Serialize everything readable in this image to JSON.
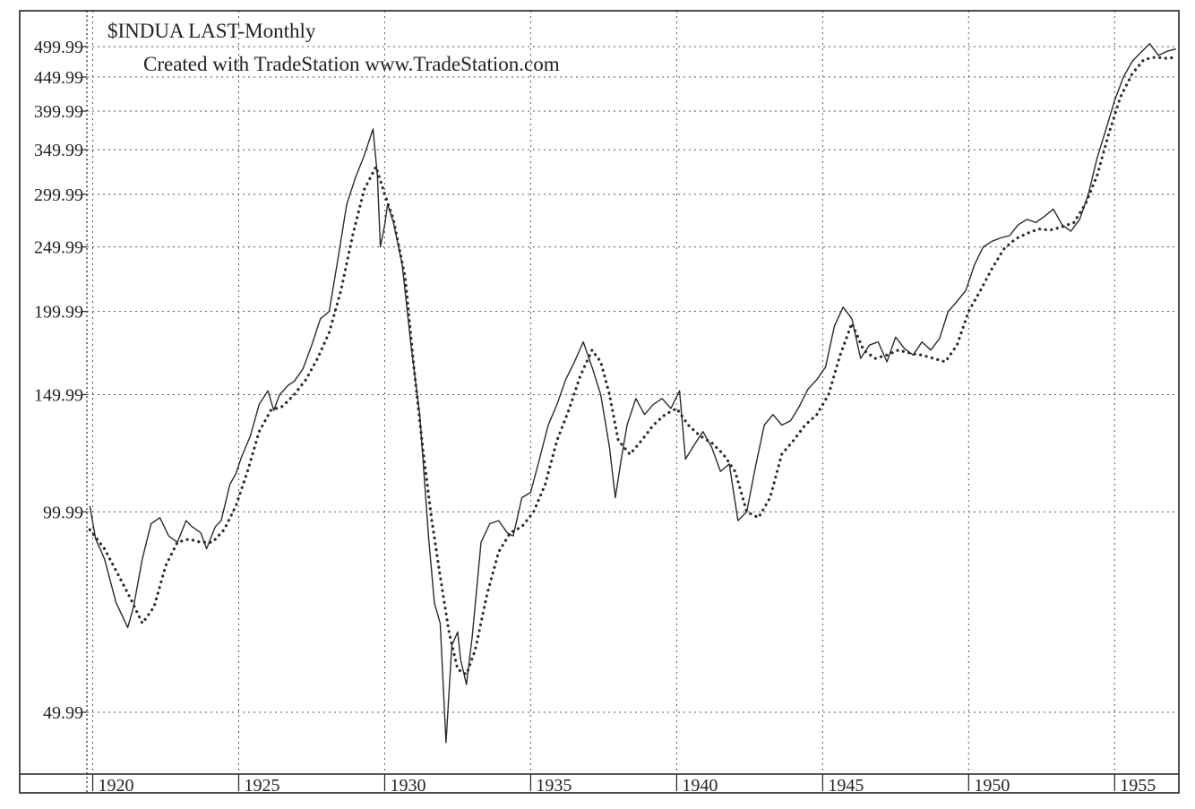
{
  "chart_data": {
    "type": "line",
    "title": "$INDUA LAST-Monthly",
    "subtitle": "Created with TradeStation www.TradeStation.com",
    "xlabel": "",
    "ylabel": "",
    "y_scale": "log",
    "x_range": [
      1919.8,
      1957.2
    ],
    "y_range": [
      40,
      520
    ],
    "grid": true,
    "colors": {
      "price": "#2b2b2b",
      "moving_average": "#2b2b2b",
      "grid": "#555555",
      "frame": "#222222"
    },
    "y_ticks": [
      {
        "value": 49.99,
        "label": "49.99"
      },
      {
        "value": 99.99,
        "label": "99.99"
      },
      {
        "value": 149.99,
        "label": "149.99"
      },
      {
        "value": 199.99,
        "label": "199.99"
      },
      {
        "value": 249.99,
        "label": "249.99"
      },
      {
        "value": 299.99,
        "label": "299.99"
      },
      {
        "value": 349.99,
        "label": "349.99"
      },
      {
        "value": 399.99,
        "label": "399.99"
      },
      {
        "value": 449.99,
        "label": "449.99"
      },
      {
        "value": 499.99,
        "label": "499.99"
      }
    ],
    "x_ticks": [
      {
        "value": 1920,
        "label": "1920"
      },
      {
        "value": 1925,
        "label": "1925"
      },
      {
        "value": 1930,
        "label": "1930"
      },
      {
        "value": 1935,
        "label": "1935"
      },
      {
        "value": 1940,
        "label": "1940"
      },
      {
        "value": 1945,
        "label": "1945"
      },
      {
        "value": 1950,
        "label": "1950"
      },
      {
        "value": 1955,
        "label": "1955"
      }
    ],
    "series": [
      {
        "style": "solid",
        "x": [
          1919.9,
          1920.1,
          1920.4,
          1920.8,
          1921.0,
          1921.2,
          1921.4,
          1921.7,
          1922.0,
          1922.3,
          1922.6,
          1922.9,
          1923.2,
          1923.4,
          1923.7,
          1923.9,
          1924.2,
          1924.4,
          1924.7,
          1924.9,
          1925.1,
          1925.4,
          1925.7,
          1926.0,
          1926.2,
          1926.4,
          1926.7,
          1926.9,
          1927.2,
          1927.5,
          1927.8,
          1928.1,
          1928.4,
          1928.7,
          1929.0,
          1929.3,
          1929.6,
          1929.75,
          1929.85,
          1930.0,
          1930.1,
          1930.3,
          1930.6,
          1930.9,
          1931.2,
          1931.5,
          1931.7,
          1931.9,
          1932.1,
          1932.3,
          1932.5,
          1932.6,
          1932.8,
          1933.0,
          1933.3,
          1933.6,
          1933.9,
          1934.2,
          1934.4,
          1934.7,
          1935.0,
          1935.3,
          1935.6,
          1935.9,
          1936.2,
          1936.5,
          1936.8,
          1937.1,
          1937.4,
          1937.7,
          1937.9,
          1938.1,
          1938.3,
          1938.6,
          1938.9,
          1939.2,
          1939.5,
          1939.8,
          1940.1,
          1940.3,
          1940.6,
          1940.9,
          1941.2,
          1941.5,
          1941.8,
          1942.1,
          1942.4,
          1942.7,
          1943.0,
          1943.3,
          1943.6,
          1943.9,
          1944.2,
          1944.5,
          1944.8,
          1945.1,
          1945.4,
          1945.7,
          1946.0,
          1946.3,
          1946.6,
          1946.9,
          1947.2,
          1947.5,
          1947.8,
          1948.1,
          1948.4,
          1948.7,
          1949.0,
          1949.3,
          1949.6,
          1949.9,
          1950.2,
          1950.5,
          1950.8,
          1951.1,
          1951.4,
          1951.7,
          1952.0,
          1952.3,
          1952.6,
          1952.9,
          1953.2,
          1953.5,
          1953.8,
          1954.1,
          1954.4,
          1954.7,
          1955.0,
          1955.3,
          1955.6,
          1955.9,
          1956.2,
          1956.5,
          1956.8,
          1957.1
        ],
        "y": [
          102,
          91,
          85,
          73,
          70,
          67,
          72,
          85,
          96,
          98,
          92,
          90,
          97,
          95,
          93,
          88,
          95,
          97,
          110,
          114,
          121,
          130,
          145,
          152,
          142,
          150,
          155,
          157,
          164,
          178,
          195,
          200,
          240,
          290,
          318,
          343,
          376,
          320,
          250,
          270,
          290,
          272,
          235,
          178,
          140,
          92,
          73,
          68,
          45,
          63,
          66,
          60,
          55,
          65,
          90,
          96,
          97,
          93,
          92,
          105,
          107,
          120,
          135,
          145,
          158,
          168,
          180,
          165,
          150,
          125,
          105,
          120,
          135,
          148,
          140,
          145,
          148,
          143,
          152,
          120,
          126,
          132,
          125,
          115,
          118,
          97,
          100,
          117,
          135,
          140,
          135,
          137,
          144,
          153,
          158,
          165,
          190,
          203,
          195,
          170,
          178,
          180,
          168,
          183,
          176,
          172,
          180,
          175,
          182,
          200,
          207,
          215,
          235,
          250,
          255,
          258,
          260,
          270,
          275,
          272,
          278,
          285,
          270,
          264,
          275,
          300,
          340,
          375,
          415,
          450,
          475,
          490,
          505,
          485,
          492,
          496
        ]
      },
      {
        "style": "dotted",
        "x": [
          1919.9,
          1920.4,
          1920.9,
          1921.3,
          1921.7,
          1922.1,
          1922.5,
          1922.9,
          1923.3,
          1923.7,
          1924.1,
          1924.5,
          1924.9,
          1925.3,
          1925.7,
          1926.1,
          1926.5,
          1926.9,
          1927.3,
          1927.7,
          1928.1,
          1928.5,
          1928.9,
          1929.3,
          1929.7,
          1930.0,
          1930.3,
          1930.7,
          1931.0,
          1931.3,
          1931.6,
          1931.9,
          1932.2,
          1932.5,
          1932.8,
          1933.1,
          1933.5,
          1933.9,
          1934.3,
          1934.7,
          1935.1,
          1935.5,
          1935.9,
          1936.3,
          1936.7,
          1937.1,
          1937.4,
          1937.7,
          1938.0,
          1938.4,
          1938.8,
          1939.2,
          1939.6,
          1940.0,
          1940.4,
          1940.8,
          1941.2,
          1941.6,
          1942.0,
          1942.4,
          1942.8,
          1943.2,
          1943.6,
          1944.0,
          1944.4,
          1944.8,
          1945.2,
          1945.6,
          1946.0,
          1946.4,
          1946.8,
          1947.2,
          1947.6,
          1948.0,
          1948.4,
          1948.8,
          1949.2,
          1949.6,
          1950.0,
          1950.4,
          1950.8,
          1951.2,
          1951.6,
          1952.0,
          1952.4,
          1952.8,
          1953.2,
          1953.6,
          1954.0,
          1954.4,
          1954.8,
          1955.2,
          1955.6,
          1956.0,
          1956.4,
          1956.8,
          1957.1
        ],
        "y": [
          94,
          88,
          80,
          74,
          68,
          72,
          83,
          90,
          91,
          90,
          90,
          94,
          102,
          115,
          132,
          142,
          144,
          150,
          158,
          170,
          186,
          215,
          260,
          305,
          330,
          300,
          275,
          225,
          165,
          125,
          98,
          80,
          66,
          58,
          57,
          62,
          75,
          87,
          93,
          95,
          100,
          110,
          128,
          142,
          160,
          175,
          168,
          150,
          128,
          122,
          128,
          135,
          140,
          143,
          135,
          130,
          127,
          122,
          115,
          100,
          98,
          105,
          122,
          128,
          135,
          140,
          150,
          172,
          192,
          175,
          170,
          172,
          175,
          173,
          172,
          170,
          168,
          178,
          200,
          215,
          232,
          248,
          257,
          262,
          266,
          265,
          268,
          272,
          290,
          320,
          370,
          420,
          455,
          478,
          482,
          480,
          482
        ]
      }
    ]
  }
}
